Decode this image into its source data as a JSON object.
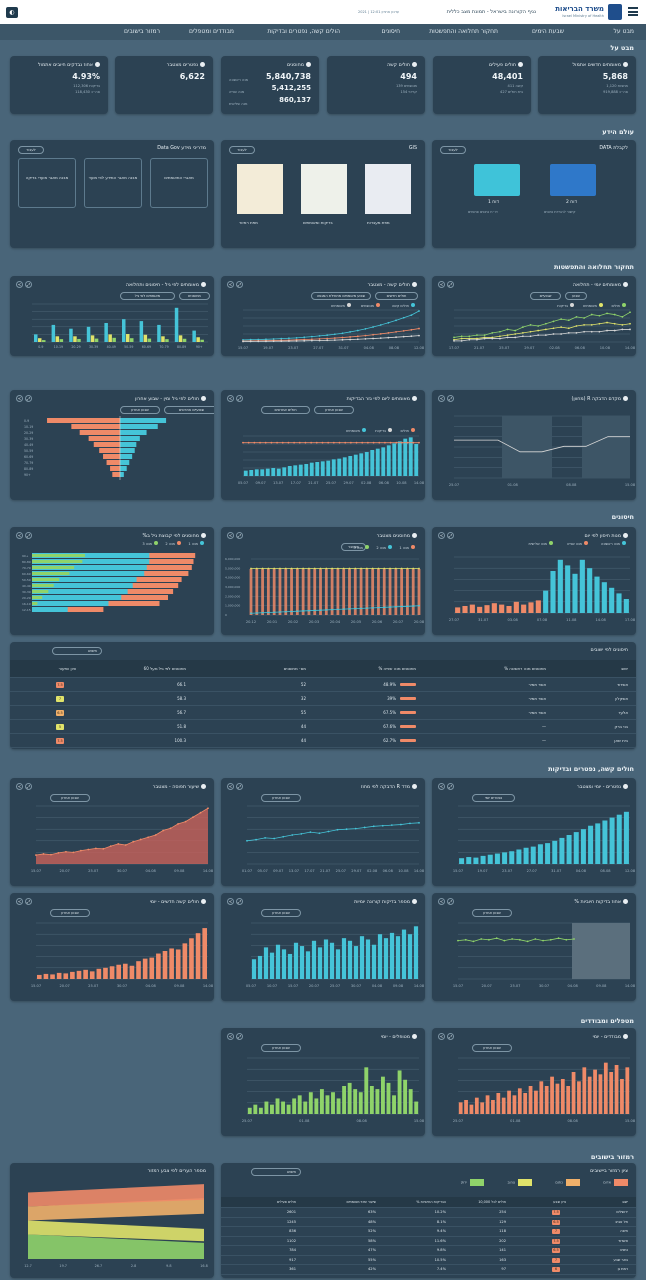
{
  "header": {
    "title": "נגיף הקורונה בישראל - תמונת מצב כללית",
    "ministry": "משרד הבריאות",
    "ministry_en": "Israel Ministry of Health",
    "updated": "עדכון אחרון 12:01 | 2021"
  },
  "nav": [
    "מבט על",
    "שבעת הימים",
    "תחקור תחלואה והתפשטות",
    "חיסונים",
    "הולים קשה, נפטרים ובדיקות",
    "מבודדים ומטפלים",
    "רמזור בישובים"
  ],
  "sections": {
    "overview": "מבט על",
    "research": "עולם הידע",
    "spread": "תחקור תחלואה והתפשטות",
    "vaccines": "חיסונים",
    "severe": "חולים קשה, נפטרים ובדיקות",
    "isolation": "מטפלים ומבודדים",
    "traffic": "רמזור בישובים"
  },
  "kpis": [
    {
      "title": "מאומתים חדשים אתמול",
      "value": "5,868",
      "lines": [
        "מחצות 1,120",
        "סה״כ 919,888"
      ]
    },
    {
      "title": "חולים פעילים",
      "value": "48,401",
      "lines": [
        "קשה 411",
        "בית חולים 427"
      ]
    },
    {
      "title": "חולים קשה",
      "value": "494",
      "lines": [
        "מונשמים 139",
        "קריטי 154"
      ]
    },
    {
      "title": "מחוסנים",
      "value": "5,840,738",
      "value2": "5,412,255",
      "value3": "860,137",
      "lines": [
        "מנה ראשונה",
        "מנה שנייה",
        "מנה שלישית"
      ]
    },
    {
      "title": "נפטרים מצטבר",
      "value": "6,622",
      "lines": []
    },
    {
      "title": "אחוז נבדקים חיובים אתמול",
      "value": "4.93%",
      "lines": [
        "בדיקות 112,306",
        "סה״כ 118,430"
      ]
    }
  ],
  "research": {
    "data_card": {
      "title": "לקבלת DATA",
      "items": [
        {
          "label": "דוח 1",
          "sub": "דו״ח נתונים פתוחים"
        },
        {
          "label": "דוח 2",
          "sub": "קישור להורדת נתונים"
        }
      ],
      "button": "לעבור"
    },
    "gis_card": {
      "title": "GIS",
      "items": [
        "מפת רמזור",
        "בדיקות ומאומתים",
        "מפת מעבדות"
      ],
      "button": "לעבור"
    },
    "guide_card": {
      "title": "מדריכי מידע Data Gov",
      "items": [
        "מאגרי המאומתים",
        "מבנה מאגר המידע לפי מועד",
        "מבנה מאגר מועדי בדיקה"
      ],
      "button": "לעבור"
    }
  },
  "spread_charts": [
    {
      "title": "מאומתים יומי - תחלואה",
      "pills": [
        "שבועיים",
        "שבוע"
      ],
      "legend": [
        "חולים",
        "מאומתים",
        "בדיקות"
      ],
      "ylabel": "מספר מאומתים",
      "xlabel": "תאריך",
      "xticks": [
        "17.07",
        "21.07",
        "25.07",
        "29.07",
        "02.08",
        "06.08",
        "10.08",
        "14.08"
      ],
      "series": [
        {
          "name": "חולים",
          "color": "#8fd36a",
          "values": [
            4,
            5,
            5,
            6,
            6,
            8,
            9,
            11,
            10,
            13,
            15,
            14,
            16,
            18,
            20,
            19,
            22,
            21,
            24,
            23,
            25,
            24,
            22,
            26
          ]
        },
        {
          "name": "מאומתים",
          "color": "#e0e36a",
          "values": [
            2,
            3,
            3,
            3,
            4,
            4,
            5,
            6,
            7,
            8,
            9,
            10,
            11,
            12,
            13,
            12,
            14,
            15,
            15,
            16,
            17,
            16,
            15,
            16
          ]
        },
        {
          "name": "בדיקות",
          "color": "#d7d7d7",
          "values": [
            1,
            1,
            2,
            2,
            3,
            3,
            3,
            4,
            4,
            5,
            5,
            6,
            6,
            7,
            7,
            8,
            8,
            9,
            9,
            9,
            10,
            10,
            11,
            11
          ]
        }
      ]
    },
    {
      "title": "חולים קשה - מצטבר",
      "pills": [
        "שבוע מאומתים מתחילת המגפה",
        "חולים חדשים"
      ],
      "legend": [
        "חולים קשה",
        "מונשמים",
        "מאומתים"
      ],
      "ylabel": "מספר חולים",
      "xlabel": "תאריך",
      "xticks": [
        "15.07",
        "19.07",
        "23.07",
        "27.07",
        "31.07",
        "04.08",
        "08.08",
        "12.08"
      ],
      "series": [
        {
          "name": "חולים קשה",
          "color": "#45c4d8",
          "values": [
            40,
            45,
            48,
            52,
            58,
            65,
            72,
            80,
            92,
            104,
            118,
            132,
            150,
            170,
            195,
            222,
            255,
            290,
            330,
            372,
            420,
            470,
            520,
            600
          ]
        },
        {
          "name": "מונשמים",
          "color": "#ef8a68",
          "values": [
            20,
            22,
            24,
            26,
            30,
            33,
            37,
            42,
            48,
            54,
            60,
            68,
            76,
            86,
            98,
            110,
            124,
            140,
            158,
            176,
            196,
            216,
            236,
            260
          ]
        },
        {
          "name": "מאומתים",
          "color": "#d7d7d7",
          "values": [
            10,
            11,
            12,
            13,
            14,
            16,
            18,
            20,
            23,
            26,
            29,
            33,
            37,
            42,
            47,
            53,
            60,
            67,
            75,
            84,
            93,
            103,
            113,
            124
          ]
        }
      ]
    },
    {
      "title": "מאומתים לפי גיל - חיסונים ותחלואה",
      "pills": [
        "מאומתים לפי גיל",
        "מחוסנים"
      ],
      "legend": [
        "מחוסנים",
        "לא מחוסנים",
        "מאומתים"
      ],
      "ylabel": "מספר",
      "xlabel": "גיל",
      "categories": [
        "0-9",
        "10-19",
        "20-29",
        "30-39",
        "40-49",
        "50-59",
        "60-69",
        "70-79",
        "80-89",
        "90+"
      ],
      "series": [
        {
          "name": "מחוסנים",
          "color": "#45c4d8",
          "values": [
            400,
            900,
            700,
            800,
            1000,
            1200,
            1100,
            900,
            1800,
            600
          ]
        },
        {
          "name": "לא מחוסנים",
          "color": "#e0e36a",
          "values": [
            200,
            300,
            300,
            350,
            400,
            420,
            380,
            300,
            350,
            250
          ]
        },
        {
          "name": "מאומתים",
          "color": "#8fd36a",
          "values": [
            100,
            150,
            160,
            180,
            220,
            200,
            180,
            150,
            170,
            120
          ]
        }
      ]
    }
  ],
  "spread_row2": [
    {
      "title": "מקדם הדבקה R (מחוון)",
      "legend": [],
      "xticks": [
        "25.07",
        "01.08",
        "08.08",
        "15.08"
      ],
      "ylabel": "R",
      "values": [
        1.15,
        1.15,
        1.15,
        0.98,
        0.98,
        1.06,
        1.06,
        1.2,
        1.2
      ]
    },
    {
      "title": "מאומתים ליום לפי גזר הבדיקות",
      "pills": [
        "חולים אחרונים",
        "שבוע אחרון"
      ],
      "legend": [
        "חולים",
        "בדיקות",
        "מאומתים"
      ],
      "ylabel": "בדיקות",
      "xlabel": "תאריך",
      "xticks": [
        "05.07",
        "09.07",
        "13.07",
        "17.07",
        "21.07",
        "25.07",
        "29.07",
        "02.08",
        "06.08",
        "10.08",
        "14.08"
      ],
      "values": [
        0.8,
        0.9,
        1.0,
        1.0,
        1.1,
        1.2,
        1.1,
        1.3,
        1.5,
        1.6,
        1.7,
        1.8,
        2.0,
        2.1,
        2.2,
        2.3,
        2.5,
        2.6,
        2.8,
        3.0,
        3.2,
        3.4,
        3.6,
        3.9,
        4.1,
        4.3,
        4.6,
        4.9,
        5.2,
        5.6,
        5.8,
        4.8
      ]
    },
    {
      "title": "חולים לפי גיל ומין - שבוע אחרון",
      "pills": [
        "שבוע אחרון",
        "שבועיים אחרונים"
      ],
      "legend": [
        "גברים",
        "נשים"
      ],
      "categories": [
        "0-9",
        "10-19",
        "20-29",
        "30-39",
        "40-49",
        "50-59",
        "60-69",
        "70-79",
        "80-89",
        "90+"
      ],
      "men": [
        22.8,
        15.2,
        12.6,
        9.8,
        8.2,
        6.5,
        5.3,
        4.2,
        3.1,
        2.4
      ],
      "women": [
        14.4,
        11.8,
        8.3,
        6.2,
        5.1,
        4.6,
        3.8,
        2.9,
        2.1,
        1.2
      ]
    }
  ],
  "vaccine_charts": [
    {
      "title": "מנות חיסון לפי יום",
      "legend": [
        "מנה ראשונה",
        "מנה שנייה",
        "מנה שלישית"
      ],
      "xticks": [
        "27.07",
        "31.07",
        "03.08",
        "07.08",
        "11.08",
        "14.08",
        "17.08"
      ],
      "values": [
        20,
        25,
        30,
        22,
        28,
        35,
        30,
        25,
        40,
        30,
        38,
        45,
        80,
        150,
        190,
        170,
        140,
        190,
        160,
        130,
        110,
        90,
        70,
        50
      ]
    },
    {
      "title": "מחוסנים מצטבר",
      "pills": [
        "מצטבר"
      ],
      "legend": [
        "מנה 1",
        "מנה 2",
        "מנה 3"
      ],
      "ylabel": "מחוסנים",
      "xticks": [
        "20.12",
        "20.01",
        "20.02",
        "20.03",
        "20.04",
        "20.05",
        "20.06",
        "20.07",
        "20.08"
      ],
      "yticks": [
        "0",
        "1,000,000",
        "2,000,000",
        "3,000,000",
        "4,000,000",
        "5,000,000",
        "6,000,000"
      ]
    },
    {
      "title": "מחוסנים לפי קבוצת גיל ב%",
      "legend": [
        "מנה 1",
        "מנה 2",
        "מנה 3"
      ],
      "categories": [
        "90+",
        "80-89",
        "70-79",
        "60-69",
        "50-59",
        "40-49",
        "30-39",
        "20-29",
        "16-19",
        "12-15"
      ],
      "dose1": [
        96,
        95,
        94,
        92,
        88,
        86,
        83,
        80,
        75,
        42
      ],
      "dose2": [
        92,
        92,
        90,
        88,
        82,
        79,
        75,
        70,
        60,
        28
      ],
      "dose3": [
        78,
        74,
        62,
        55,
        40,
        32,
        24,
        15,
        8,
        0
      ]
    }
  ],
  "vaccine_table": {
    "title": "חיסונים לפי ישובים",
    "search": "חיפוש",
    "columns": [
      "ישוב",
      "% מחוסנים מנה ראשונה",
      "% מחוסנים מנה שנייה",
      "מס׳ מחוסנים",
      "מחוסנים לפי גיל מעל 60",
      "ציון ושיעור"
    ],
    "rows": [
      [
        "אשדוד",
        "אשר תמיר",
        "48.9%",
        "52",
        "66.1",
        "7.5"
      ],
      [
        "אשקלון",
        "אשר תמיר",
        "39%",
        "32",
        "58.3",
        "7"
      ],
      [
        "אלעד",
        "אשר תמיר",
        "67.5%",
        "55",
        "56.7",
        "6.5"
      ],
      [
        "בני ברק",
        "—",
        "67.6%",
        "44",
        "51.8",
        "5"
      ],
      [
        "בית שאן",
        "—",
        "62.7%",
        "44",
        "100.3",
        "7.5"
      ]
    ]
  },
  "severe_charts": [
    {
      "title": "נפטרים - יומי ומצטבר",
      "pills": [
        "נפטרים יומי"
      ],
      "xticks": [
        "15.07",
        "19.07",
        "23.07",
        "27.07",
        "31.07",
        "04.08",
        "08.08",
        "12.08"
      ],
      "values": [
        10,
        12,
        11,
        14,
        16,
        18,
        20,
        22,
        25,
        28,
        30,
        34,
        36,
        40,
        45,
        50,
        55,
        60,
        66,
        70,
        75,
        80,
        85,
        90
      ]
    },
    {
      "title": "מדד R הדבקה לפי מחוז",
      "pills": [
        "שבוע אחרון"
      ],
      "xticks": [
        "01.07",
        "05.07",
        "09.07",
        "13.07",
        "17.07",
        "21.07",
        "25.07",
        "29.07",
        "02.08",
        "06.08",
        "10.08",
        "14.08"
      ],
      "values": [
        1.0,
        1.02,
        1.05,
        1.04,
        1.07,
        1.1,
        1.12,
        1.15,
        1.13,
        1.16,
        1.19,
        1.2,
        1.21,
        1.23,
        1.25,
        1.26,
        1.27,
        1.28,
        1.3,
        1.31
      ]
    },
    {
      "title": "שיעור תפוסה - מצטבר",
      "pills": [
        "שבוע אחרון"
      ],
      "xticks": [
        "15.07",
        "20.07",
        "25.07",
        "30.07",
        "04.08",
        "09.08",
        "14.08"
      ],
      "values": [
        40,
        45,
        42,
        50,
        55,
        52,
        60,
        65,
        70,
        68,
        80,
        90,
        85,
        100,
        110,
        120,
        130,
        150,
        160,
        180,
        190,
        210,
        230,
        250
      ]
    }
  ],
  "severe_row2": [
    {
      "title": "אחוז בדיקות חיוביות %",
      "pills": [
        "שבוע אחרון"
      ],
      "xticks": [
        "15.07",
        "20.07",
        "25.07",
        "30.07",
        "04.08",
        "09.08",
        "14.08"
      ],
      "values": [
        4.8,
        4.9,
        4.7,
        5.0,
        4.9,
        5.1,
        4.8,
        5.0,
        4.9,
        4.7,
        5.0,
        4.8,
        4.9,
        5.1,
        4.9,
        5.0
      ]
    },
    {
      "title": "מספר בדיקות קורונה יומיות",
      "pills": [
        "שבוע אחרון"
      ],
      "xticks": [
        "05.07",
        "10.07",
        "15.07",
        "20.07",
        "25.07",
        "30.07",
        "04.08",
        "09.08",
        "14.08"
      ],
      "values": [
        30,
        35,
        48,
        40,
        52,
        45,
        38,
        55,
        50,
        42,
        58,
        48,
        60,
        55,
        45,
        62,
        58,
        50,
        65,
        60,
        52,
        68,
        62,
        70,
        65,
        75,
        68,
        80
      ]
    },
    {
      "title": "חולים קשה חדשים - יומי",
      "pills": [
        "שבוע אחרון"
      ],
      "xticks": [
        "15.07",
        "20.07",
        "25.07",
        "30.07",
        "04.08",
        "09.08",
        "14.08"
      ],
      "values": [
        8,
        10,
        9,
        12,
        11,
        14,
        16,
        18,
        15,
        20,
        22,
        25,
        28,
        30,
        26,
        35,
        40,
        42,
        50,
        55,
        60,
        58,
        70,
        80,
        90,
        100
      ]
    }
  ],
  "isolation_charts": [
    {
      "title": "מבודדים - יומי",
      "pills": [
        "שבוע אחרון"
      ],
      "xticks": [
        "25.07",
        "01.08",
        "08.08",
        "15.08"
      ],
      "values": [
        5,
        6,
        4,
        7,
        5,
        8,
        6,
        9,
        7,
        10,
        8,
        11,
        9,
        12,
        10,
        14,
        12,
        16,
        13,
        15,
        12,
        18,
        14,
        20,
        16,
        19,
        17,
        22,
        18,
        21,
        15,
        20
      ]
    },
    {
      "title": "מטופלים - יומי",
      "pills": [
        "שבוע אחרון"
      ],
      "xticks": [
        "25.07",
        "01.08",
        "08.08",
        "15.08"
      ],
      "values": [
        2,
        3,
        2,
        4,
        3,
        5,
        4,
        3,
        5,
        6,
        4,
        7,
        5,
        8,
        6,
        7,
        5,
        9,
        10,
        8,
        7,
        15,
        9,
        8,
        12,
        10,
        6,
        14,
        11,
        8,
        4
      ]
    }
  ],
  "traffic": {
    "chart_title": "מספר הערים לפי צבע רמזור",
    "table_title": "ציון רמזור ביישובים",
    "legend": [
      "אדום",
      "כתום",
      "צהוב",
      "ירוק"
    ],
    "search": "חיפוש",
    "columns": [
      "ישוב",
      "ציון וצבע",
      "חולים לכל 10,000",
      "% הבדיקות החיוביות",
      "שיעור שינוי מאומתים",
      "חולים פעילים"
    ],
    "rows": [
      [
        "ירושלים",
        "7.5",
        "254",
        "10.2%",
        "63%",
        "2601"
      ],
      [
        "תל אביב",
        "6.5",
        "129",
        "8.1%",
        "48%",
        "1245"
      ],
      [
        "חיפה",
        "7",
        "118",
        "9.4%",
        "52%",
        "836"
      ],
      [
        "אשדוד",
        "7.5",
        "202",
        "11.6%",
        "58%",
        "1102"
      ],
      [
        "נתניה",
        "6.5",
        "141",
        "9.8%",
        "47%",
        "784"
      ],
      [
        "באר שבע",
        "7",
        "163",
        "10.5%",
        "55%",
        "917"
      ],
      [
        "רמת גן",
        "6",
        "97",
        "7.4%",
        "42%",
        "361"
      ]
    ]
  },
  "colors": {
    "card": "#2c4253",
    "bg": "#496579",
    "cyan": "#45c4d8",
    "orange": "#ef8a68",
    "yellow": "#e0e36a",
    "green": "#8fd36a",
    "white": "#d7d7d7"
  }
}
